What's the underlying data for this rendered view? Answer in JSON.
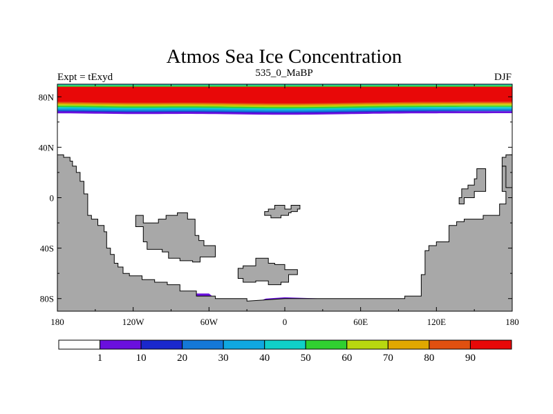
{
  "title": "Atmos Sea Ice Concentration",
  "subtitle_left": "Expt = tExyd",
  "subtitle_center": "535_0_MaBP",
  "subtitle_right": "DJF",
  "x_ticks": [
    "180",
    "120W",
    "60W",
    "0",
    "60E",
    "120E",
    "180"
  ],
  "y_ticks": [
    "80N",
    "40N",
    "0",
    "40S",
    "80S"
  ],
  "colorbar": {
    "labels": [
      "1",
      "10",
      "20",
      "30",
      "40",
      "50",
      "60",
      "70",
      "80",
      "90"
    ],
    "colors": [
      "#ffffff",
      "#6a10de",
      "#1a28cc",
      "#1478d8",
      "#10a8e0",
      "#10d0c8",
      "#30d030",
      "#b8d810",
      "#e0a800",
      "#e05010",
      "#e80808"
    ]
  },
  "land_color": "#a8a8a8",
  "map_data": {
    "type": "filled-contour-map",
    "variable": "sea ice concentration",
    "x_range": [
      -180,
      180
    ],
    "y_range": [
      -90,
      90
    ],
    "arctic_bands": [
      {
        "level": "90+",
        "color": "#e80808",
        "lat_min": 76,
        "lat_max": 88
      },
      {
        "level": "80-90",
        "color": "#e05010",
        "lat_min": 75,
        "lat_max": 76
      },
      {
        "level": "70-80",
        "color": "#e0a800",
        "lat_min": 74,
        "lat_max": 75
      },
      {
        "level": "60-70",
        "color": "#b8d810",
        "lat_min": 73,
        "lat_max": 74
      },
      {
        "level": "50-60",
        "color": "#30d030",
        "lat_min": 72,
        "lat_max": 73
      },
      {
        "level": "40-50",
        "color": "#10d0c8",
        "lat_min": 71,
        "lat_max": 72
      },
      {
        "level": "30-40",
        "color": "#10a8e0",
        "lat_min": 70,
        "lat_max": 71
      },
      {
        "level": "20-30",
        "color": "#1478d8",
        "lat_min": 69,
        "lat_max": 70
      },
      {
        "level": "10-20",
        "color": "#1a28cc",
        "lat_min": 68.5,
        "lat_max": 69
      },
      {
        "level": "1-10",
        "color": "#6a10de",
        "lat_min": 67,
        "lat_max": 68.5
      }
    ],
    "top_strip": [
      {
        "color": "#10d0c8",
        "lat_min": 89,
        "lat_max": 90
      },
      {
        "color": "#30d030",
        "lat_min": 88,
        "lat_max": 89
      }
    ],
    "land": [
      [
        [
          -180,
          34
        ],
        [
          -175,
          34
        ],
        [
          -175,
          32
        ],
        [
          -170,
          32
        ],
        [
          -170,
          29
        ],
        [
          -168,
          29
        ],
        [
          -168,
          25
        ],
        [
          -165,
          25
        ],
        [
          -165,
          20
        ],
        [
          -162,
          20
        ],
        [
          -162,
          13
        ],
        [
          -159,
          13
        ],
        [
          -159,
          3
        ],
        [
          -156,
          3
        ],
        [
          -156,
          -14
        ],
        [
          -153,
          -14
        ],
        [
          -153,
          -17
        ],
        [
          -148,
          -17
        ],
        [
          -148,
          -22
        ],
        [
          -143,
          -22
        ],
        [
          -143,
          -27
        ],
        [
          -141,
          -27
        ],
        [
          -141,
          -40
        ],
        [
          -138,
          -40
        ],
        [
          -138,
          -45
        ],
        [
          -135,
          -45
        ],
        [
          -135,
          -52
        ],
        [
          -132,
          -52
        ],
        [
          -132,
          -55
        ],
        [
          -128,
          -55
        ],
        [
          -128,
          -60
        ],
        [
          -123,
          -60
        ],
        [
          -123,
          -62
        ],
        [
          -113,
          -62
        ],
        [
          -113,
          -65
        ],
        [
          -103,
          -65
        ],
        [
          -103,
          -67
        ],
        [
          -93,
          -67
        ],
        [
          -93,
          -69
        ],
        [
          -83,
          -69
        ],
        [
          -83,
          -74
        ],
        [
          -70,
          -74
        ],
        [
          -70,
          -78
        ],
        [
          -55,
          -78
        ],
        [
          -55,
          -80
        ],
        [
          -30,
          -80
        ],
        [
          -30,
          -82
        ],
        [
          0,
          -80
        ],
        [
          40,
          -80
        ],
        [
          95,
          -80
        ],
        [
          95,
          -78
        ],
        [
          108,
          -78
        ],
        [
          108,
          -61
        ],
        [
          111,
          -61
        ],
        [
          111,
          -42
        ],
        [
          114,
          -42
        ],
        [
          114,
          -38
        ],
        [
          120,
          -38
        ],
        [
          120,
          -35
        ],
        [
          130,
          -35
        ],
        [
          130,
          -22
        ],
        [
          136,
          -22
        ],
        [
          136,
          -19
        ],
        [
          142,
          -19
        ],
        [
          142,
          -17
        ],
        [
          157,
          -17
        ],
        [
          157,
          -14
        ],
        [
          170,
          -14
        ],
        [
          170,
          -5
        ],
        [
          175,
          -5
        ],
        [
          175,
          5
        ],
        [
          172,
          5
        ],
        [
          172,
          25
        ],
        [
          175,
          25
        ],
        [
          175,
          32
        ],
        [
          178,
          32
        ],
        [
          178,
          34
        ],
        [
          180,
          34
        ],
        [
          180,
          -90
        ],
        [
          -180,
          -90
        ]
      ],
      [
        [
          -118,
          -14
        ],
        [
          -112,
          -14
        ],
        [
          -112,
          -20
        ],
        [
          -100,
          -20
        ],
        [
          -100,
          -17
        ],
        [
          -94,
          -17
        ],
        [
          -94,
          -14
        ],
        [
          -85,
          -14
        ],
        [
          -85,
          -12
        ],
        [
          -77,
          -12
        ],
        [
          -77,
          -17
        ],
        [
          -71,
          -17
        ],
        [
          -71,
          -30
        ],
        [
          -68,
          -30
        ],
        [
          -68,
          -34
        ],
        [
          -64,
          -34
        ],
        [
          -64,
          -38
        ],
        [
          -55,
          -38
        ],
        [
          -55,
          -47
        ],
        [
          -67,
          -47
        ],
        [
          -67,
          -51
        ],
        [
          -73,
          -51
        ],
        [
          -73,
          -50
        ],
        [
          -83,
          -50
        ],
        [
          -83,
          -48
        ],
        [
          -92,
          -48
        ],
        [
          -92,
          -43
        ],
        [
          -97,
          -43
        ],
        [
          -97,
          -41
        ],
        [
          -109,
          -41
        ],
        [
          -109,
          -35
        ],
        [
          -112,
          -35
        ],
        [
          -112,
          -23
        ],
        [
          -118,
          -23
        ]
      ],
      [
        [
          -16,
          -11
        ],
        [
          -13,
          -11
        ],
        [
          -13,
          -9
        ],
        [
          -8,
          -9
        ],
        [
          -8,
          -6
        ],
        [
          0,
          -6
        ],
        [
          0,
          -9
        ],
        [
          5,
          -9
        ],
        [
          5,
          -6
        ],
        [
          12,
          -6
        ],
        [
          12,
          -9
        ],
        [
          10,
          -9
        ],
        [
          10,
          -11
        ],
        [
          5,
          -11
        ],
        [
          5,
          -12
        ],
        [
          3,
          -12
        ],
        [
          3,
          -14
        ],
        [
          -3,
          -14
        ],
        [
          -3,
          -16
        ],
        [
          -11,
          -16
        ],
        [
          -11,
          -14
        ],
        [
          -16,
          -14
        ]
      ],
      [
        [
          -23,
          -48
        ],
        [
          -13,
          -48
        ],
        [
          -13,
          -52
        ],
        [
          -8,
          -52
        ],
        [
          -8,
          -53
        ],
        [
          0,
          -53
        ],
        [
          0,
          -57
        ],
        [
          10,
          -57
        ],
        [
          10,
          -61
        ],
        [
          3,
          -61
        ],
        [
          3,
          -67
        ],
        [
          -3,
          -67
        ],
        [
          -3,
          -69
        ],
        [
          -13,
          -69
        ],
        [
          -13,
          -66
        ],
        [
          -23,
          -66
        ],
        [
          -23,
          -67
        ],
        [
          -33,
          -67
        ],
        [
          -33,
          -64
        ],
        [
          -37,
          -64
        ],
        [
          -37,
          -56
        ],
        [
          -33,
          -56
        ],
        [
          -33,
          -54
        ],
        [
          -23,
          -54
        ]
      ],
      [
        [
          152,
          23
        ],
        [
          159,
          23
        ],
        [
          159,
          5
        ],
        [
          150,
          5
        ],
        [
          150,
          0
        ],
        [
          142,
          0
        ],
        [
          142,
          -5
        ],
        [
          138,
          -5
        ],
        [
          138,
          0
        ],
        [
          140,
          0
        ],
        [
          140,
          7
        ],
        [
          145,
          7
        ],
        [
          145,
          10
        ],
        [
          150,
          10
        ],
        [
          150,
          15
        ],
        [
          152,
          15
        ]
      ],
      [
        [
          180,
          34
        ],
        [
          175,
          34
        ],
        [
          175,
          32
        ],
        [
          172,
          32
        ],
        [
          172,
          25
        ],
        [
          175,
          25
        ],
        [
          175,
          8
        ],
        [
          180,
          8
        ]
      ]
    ],
    "antarctic_ice": [
      [
        [
          -82,
          -76
        ],
        [
          -60,
          -76
        ],
        [
          -55,
          -80
        ],
        [
          -30,
          -80
        ],
        [
          -35,
          -82
        ],
        [
          -65,
          -83
        ],
        [
          -80,
          -80
        ]
      ],
      [
        [
          -20,
          -82
        ],
        [
          -15,
          -80
        ],
        [
          0,
          -79
        ],
        [
          30,
          -80
        ],
        [
          45,
          -80
        ],
        [
          35,
          -81
        ],
        [
          0,
          -81
        ]
      ]
    ]
  }
}
